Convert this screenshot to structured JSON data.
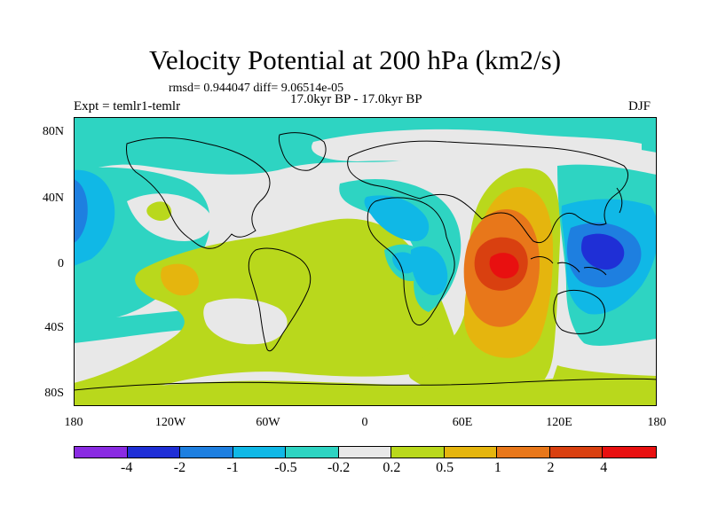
{
  "title": "Velocity Potential at 200 hPa (km2/s)",
  "stats": "rmsd= 0.944047 diff= 9.06514e-05",
  "experiment": "Expt = temlr1-temlr",
  "period": "17.0kyr BP - 17.0kyr BP",
  "season": "DJF",
  "axes": {
    "lat_labels": [
      "80N",
      "40N",
      "0",
      "40S",
      "80S"
    ],
    "lon_labels": [
      "180",
      "120W",
      "60W",
      "0",
      "60E",
      "120E",
      "180"
    ]
  },
  "colorbar": {
    "labels": [
      "-4",
      "-2",
      "-1",
      "-0.5",
      "-0.2",
      "0.2",
      "0.5",
      "1",
      "2",
      "4"
    ],
    "colors": [
      "#8a2be2",
      "#1f2fd6",
      "#1e7fe0",
      "#10b8e6",
      "#2ed4c2",
      "#e8e8e8",
      "#b9d81c",
      "#e5b50e",
      "#e8771a",
      "#d94010",
      "#e81010"
    ]
  },
  "colors": {
    "land_outline": "#000000",
    "background": "#ffffff"
  }
}
